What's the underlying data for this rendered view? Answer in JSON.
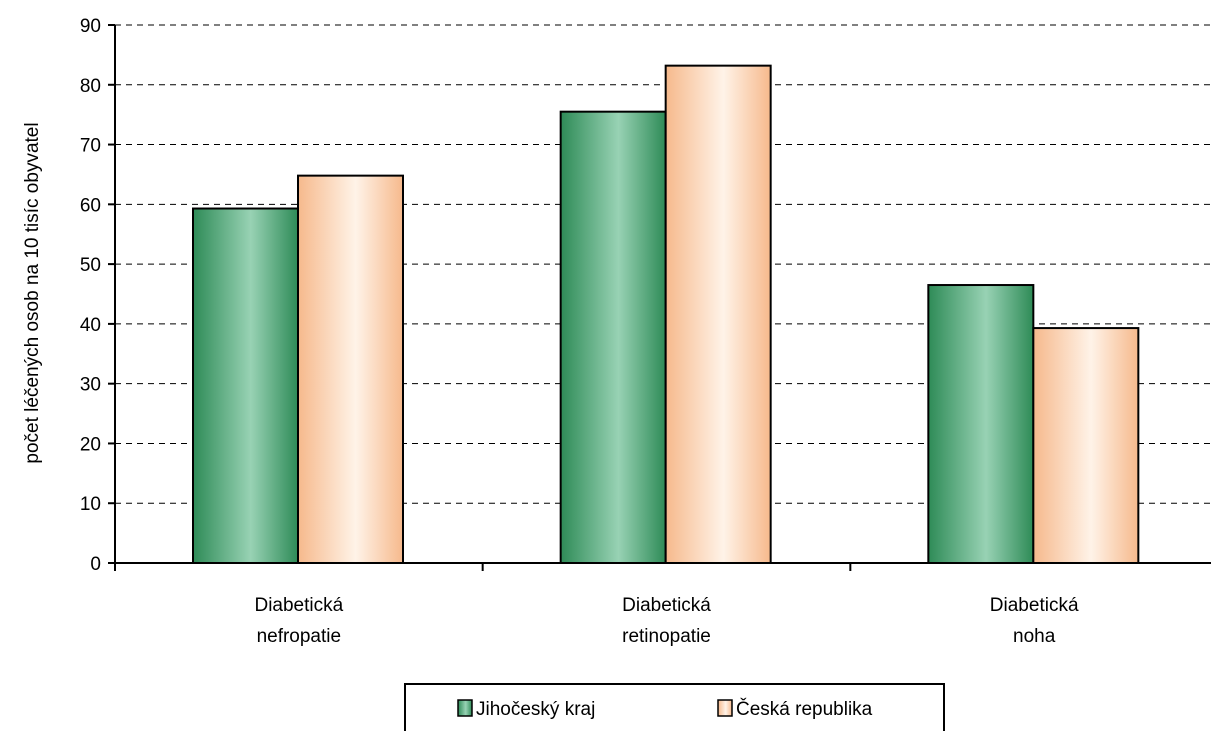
{
  "chart_data": {
    "type": "bar",
    "title": "",
    "xlabel": "",
    "ylabel": "počet léčených osob na 10 tisíc obyvatel",
    "ylim": [
      0,
      90
    ],
    "yticks": [
      0,
      10,
      20,
      30,
      40,
      50,
      60,
      70,
      80,
      90
    ],
    "grid": true,
    "legend_position": "bottom",
    "categories": [
      [
        "Diabetická",
        "nefropatie"
      ],
      [
        "Diabetická",
        "retinopatie"
      ],
      [
        "Diabetická",
        "noha"
      ]
    ],
    "series": [
      {
        "name": "Jihočeský kraj",
        "values": [
          59.3,
          75.5,
          46.5
        ],
        "color_dark": "#2e8b57",
        "color_light": "#98d2b4"
      },
      {
        "name": "Česká republika",
        "values": [
          64.8,
          83.2,
          39.3
        ],
        "color_dark": "#f6b98c",
        "color_light": "#fff3e8"
      }
    ]
  }
}
